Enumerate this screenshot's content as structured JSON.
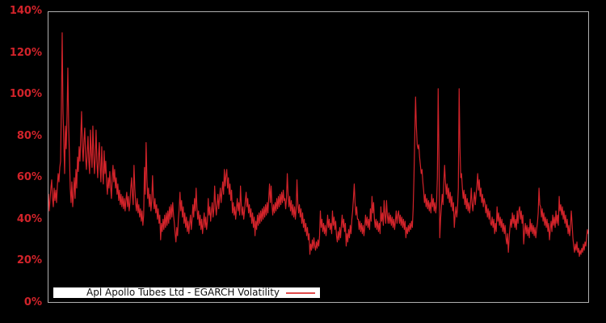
{
  "accent_colors": {
    "line": "#d2232a",
    "tick_label": "#d2232a",
    "axis_border": "#b0b0b0",
    "background": "#000000",
    "legend_background": "#ffffff",
    "legend_text": "#111111"
  },
  "legend": {
    "label": "Apl Apollo Tubes Ltd - EGARCH Volatility",
    "swatch": "red-line"
  },
  "chart_data": {
    "type": "line",
    "title": "",
    "xlabel": "",
    "ylabel": "",
    "ylim": [
      0,
      140
    ],
    "yticks": [
      0,
      20,
      40,
      60,
      80,
      100,
      120,
      140
    ],
    "ytick_suffix": "%",
    "grid": false,
    "legend_position": "bottom-left",
    "x_count": 670,
    "series": [
      {
        "name": "Apl Apollo Tubes Ltd - EGARCH Volatility",
        "color": "#d2232a",
        "unit": "%",
        "values": [
          52,
          44,
          50,
          55,
          59,
          50,
          46,
          55,
          49,
          54,
          48,
          56,
          62,
          58,
          65,
          68,
          95,
          130,
          92,
          77,
          62,
          85,
          74,
          90,
          113,
          85,
          70,
          55,
          48,
          58,
          46,
          52,
          60,
          50,
          64,
          55,
          70,
          63,
          75,
          68,
          80,
          92,
          75,
          68,
          78,
          84,
          70,
          64,
          72,
          80,
          68,
          62,
          83,
          72,
          65,
          85,
          72,
          62,
          70,
          83,
          68,
          60,
          70,
          77,
          65,
          58,
          75,
          64,
          57,
          73,
          62,
          68,
          58,
          52,
          60,
          55,
          63,
          56,
          50,
          60,
          66,
          58,
          64,
          55,
          60,
          52,
          57,
          49,
          54,
          47,
          52,
          46,
          51,
          45,
          50,
          44,
          49,
          53,
          46,
          51,
          44,
          48,
          55,
          60,
          52,
          47,
          66,
          55,
          48,
          44,
          50,
          43,
          47,
          41,
          45,
          39,
          44,
          37,
          42,
          65,
          52,
          77,
          60,
          50,
          55,
          46,
          52,
          44,
          49,
          61,
          50,
          45,
          50,
          43,
          47,
          40,
          45,
          38,
          42,
          30,
          38,
          34,
          40,
          35,
          42,
          36,
          43,
          37,
          44,
          38,
          46,
          40,
          47,
          41,
          48,
          42,
          38,
          33,
          29,
          36,
          32,
          40,
          45,
          53,
          44,
          49,
          41,
          46,
          38,
          43,
          36,
          41,
          34,
          39,
          33,
          38,
          42,
          35,
          40,
          47,
          41,
          50,
          44,
          55,
          46,
          40,
          44,
          37,
          42,
          35,
          40,
          33,
          38,
          43,
          36,
          41,
          35,
          39,
          50,
          42,
          46,
          39,
          44,
          48,
          41,
          45,
          56,
          47,
          42,
          47,
          52,
          45,
          50,
          55,
          48,
          53,
          58,
          52,
          64,
          56,
          61,
          64,
          55,
          60,
          52,
          57,
          49,
          54,
          43,
          48,
          42,
          46,
          40,
          45,
          50,
          44,
          48,
          42,
          56,
          47,
          42,
          46,
          40,
          44,
          49,
          53,
          46,
          50,
          43,
          47,
          41,
          45,
          38,
          43,
          36,
          41,
          32,
          39,
          35,
          42,
          37,
          43,
          38,
          44,
          39,
          45,
          40,
          46,
          41,
          47,
          42,
          48,
          43,
          50,
          57,
          48,
          56,
          47,
          42,
          47,
          43,
          48,
          44,
          50,
          45,
          51,
          46,
          52,
          47,
          53,
          48,
          54,
          49,
          50,
          45,
          50,
          62,
          52,
          46,
          51,
          44,
          49,
          42,
          47,
          41,
          46,
          40,
          45,
          59,
          48,
          43,
          47,
          41,
          45,
          38,
          43,
          36,
          40,
          34,
          38,
          32,
          36,
          30,
          33,
          23,
          28,
          25,
          30,
          26,
          31,
          27,
          25,
          29,
          26,
          30,
          27,
          32,
          44,
          36,
          40,
          34,
          38,
          33,
          37,
          32,
          36,
          42,
          36,
          40,
          35,
          38,
          33,
          44,
          37,
          41,
          35,
          39,
          32,
          29,
          34,
          30,
          36,
          31,
          37,
          42,
          36,
          40,
          34,
          38,
          27,
          33,
          29,
          35,
          31,
          37,
          33,
          40,
          44,
          50,
          57,
          48,
          42,
          46,
          40,
          40,
          35,
          39,
          34,
          38,
          33,
          37,
          32,
          36,
          42,
          37,
          41,
          36,
          40,
          35,
          45,
          39,
          51,
          43,
          48,
          40,
          36,
          40,
          35,
          39,
          34,
          38,
          33,
          46,
          39,
          43,
          37,
          49,
          42,
          38,
          49,
          42,
          38,
          43,
          38,
          42,
          37,
          41,
          36,
          40,
          35,
          39,
          44,
          38,
          42,
          44,
          38,
          42,
          37,
          41,
          36,
          40,
          35,
          39,
          31,
          36,
          33,
          37,
          34,
          38,
          35,
          39,
          36,
          45,
          60,
          80,
          99,
          85,
          76,
          74,
          76,
          70,
          66,
          62,
          64,
          58,
          54,
          48,
          52,
          46,
          50,
          45,
          49,
          44,
          48,
          43,
          52,
          46,
          50,
          44,
          48,
          43,
          47,
          60,
          103,
          70,
          31,
          40,
          46,
          52,
          47,
          58,
          66,
          58,
          52,
          57,
          50,
          55,
          48,
          53,
          46,
          51,
          44,
          48,
          36,
          42,
          46,
          41,
          45,
          55,
          103,
          75,
          60,
          62,
          55,
          50,
          54,
          47,
          52,
          45,
          50,
          44,
          48,
          43,
          47,
          55,
          48,
          44,
          49,
          53,
          47,
          52,
          56,
          62,
          54,
          59,
          51,
          55,
          48,
          52,
          46,
          50,
          48,
          43,
          47,
          41,
          45,
          40,
          44,
          38,
          37,
          41,
          36,
          40,
          33,
          38,
          34,
          46,
          39,
          43,
          37,
          41,
          36,
          40,
          34,
          38,
          33,
          37,
          31,
          28,
          33,
          24,
          31,
          36,
          40,
          36,
          43,
          38,
          42,
          36,
          40,
          35,
          44,
          38,
          44,
          46,
          40,
          44,
          38,
          42,
          28,
          34,
          38,
          33,
          37,
          32,
          36,
          31,
          40,
          34,
          38,
          33,
          37,
          32,
          36,
          31,
          35,
          38,
          43,
          55,
          47,
          46,
          41,
          45,
          39,
          43,
          37,
          41,
          36,
          40,
          34,
          38,
          30,
          35,
          39,
          34,
          42,
          37,
          41,
          36,
          44,
          38,
          42,
          37,
          51,
          44,
          47,
          42,
          46,
          40,
          44,
          38,
          42,
          36,
          40,
          33,
          37,
          32,
          36,
          44,
          38,
          31,
          27,
          24,
          28,
          25,
          29,
          24,
          26,
          22,
          25,
          23,
          26,
          24,
          28,
          25,
          29,
          27,
          31,
          35,
          33
        ]
      }
    ]
  }
}
